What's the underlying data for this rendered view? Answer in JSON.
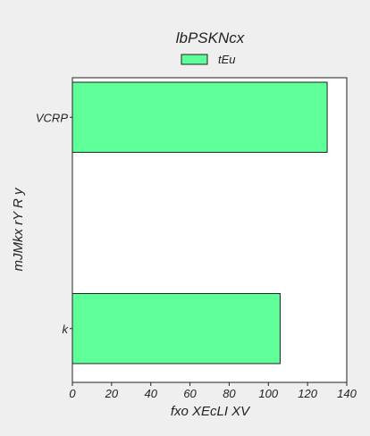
{
  "chart_data": {
    "type": "bar",
    "orientation": "horizontal",
    "title": "lbPSKNcx",
    "xlabel": "fxo XEcLI XV",
    "ylabel": "mJMkx rY R y",
    "categories": [
      "VCRP",
      "k"
    ],
    "series": [
      {
        "name": "tEu",
        "values": [
          130,
          106
        ]
      }
    ],
    "xlim": [
      0,
      140
    ],
    "xticks": [
      0,
      20,
      40,
      60,
      80,
      100,
      120,
      140
    ],
    "grid": false,
    "legend_position": "top-center",
    "colors": {
      "bar": "#5eff98",
      "bar_edge": "#222222",
      "background": "#efefef",
      "plot_background": "#ffffff"
    }
  }
}
